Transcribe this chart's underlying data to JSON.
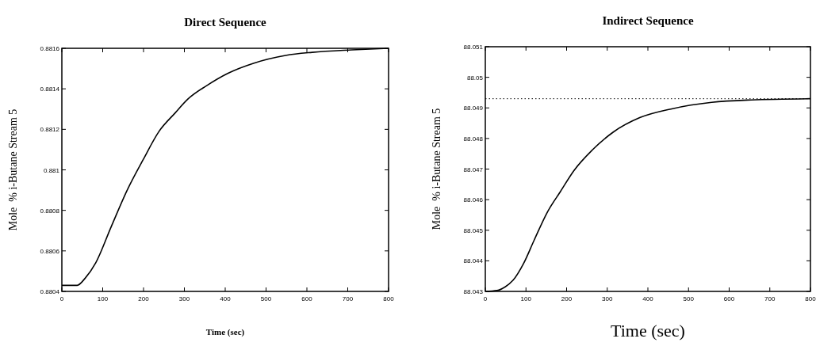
{
  "chart_data": [
    {
      "type": "line",
      "title": "Direct Sequence",
      "xlabel": "Time (sec)",
      "ylabel": "Mole  % i-Butane Stream 5",
      "x": [
        0,
        37.5,
        57,
        82.7,
        121,
        160,
        199,
        238,
        277,
        309,
        354,
        406,
        470.5,
        548,
        613,
        710,
        800
      ],
      "series": [
        {
          "color": "#000000",
          "values": [
            0.88043,
            0.88043,
            0.880465,
            0.88054,
            0.88072,
            0.8809,
            0.88105,
            0.88119,
            0.88128,
            0.88135,
            0.881415,
            0.881476,
            0.881527,
            0.881565,
            0.88158,
            0.881592,
            0.8816
          ]
        }
      ],
      "xlim": [
        0,
        800
      ],
      "xticks": [
        0,
        100,
        200,
        300,
        400,
        500,
        600,
        700,
        800
      ],
      "ylim": [
        0.8804,
        0.8816
      ],
      "yticks": [
        0.8804,
        0.8806,
        0.8808,
        0.881,
        0.8812,
        0.8814,
        0.8816
      ],
      "grid": false
    },
    {
      "type": "line",
      "title": "Indirect Sequence",
      "xlabel": "Time (sec)",
      "ylabel": "Mole  % i-Butane Stream 5",
      "x": [
        0,
        29,
        49,
        68,
        94,
        120,
        153,
        185,
        218,
        263,
        315,
        380,
        459,
        557,
        654,
        800
      ],
      "series": [
        {
          "color": "#000000",
          "values": [
            88.043,
            88.04303,
            88.04315,
            88.04336,
            88.04391,
            88.04467,
            88.0456,
            88.04627,
            88.04695,
            88.04762,
            88.04821,
            88.04868,
            88.04897,
            88.04918,
            88.04926,
            88.0493
          ]
        }
      ],
      "xlim": [
        0,
        800
      ],
      "xticks": [
        0,
        100,
        200,
        300,
        400,
        500,
        600,
        700,
        800
      ],
      "ylim": [
        88.043,
        88.051
      ],
      "yticks": [
        88.043,
        88.044,
        88.045,
        88.046,
        88.047,
        88.048,
        88.049,
        88.05,
        88.051
      ],
      "ref_lines": [
        {
          "axis": "y",
          "value": 88.0493,
          "line_style": "dotted",
          "color": "#000000"
        }
      ],
      "grid": false
    }
  ]
}
